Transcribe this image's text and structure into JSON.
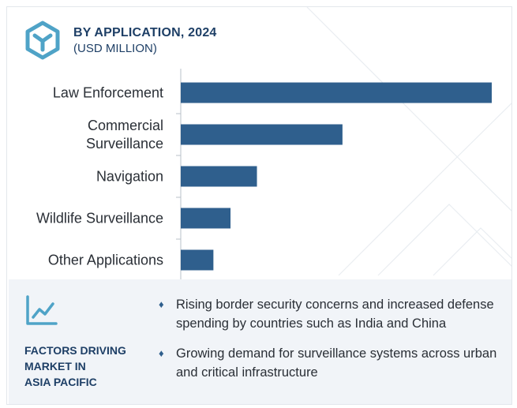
{
  "header": {
    "title": "BY APPLICATION, 2024",
    "subtitle": "(USD MILLION)",
    "logo_icon": "hexagon-y-logo-icon"
  },
  "chart_data": {
    "type": "bar",
    "orientation": "horizontal",
    "categories": [
      [
        "Law Enforcement"
      ],
      [
        "Commercial",
        "Surveillance"
      ],
      [
        "Navigation"
      ],
      [
        "Wildlife Surveillance"
      ],
      [
        "Other Applications"
      ]
    ],
    "values": [
      100,
      52,
      24.5,
      16,
      10.5
    ],
    "title": "BY APPLICATION, 2024",
    "subtitle": "(USD MILLION)",
    "xlim": [
      0,
      100
    ],
    "bar_color": "#2f5f8d",
    "grid": false,
    "legend": "none"
  },
  "factors": {
    "icon": "trend-chart-icon",
    "label": [
      "FACTORS DRIVING",
      "MARKET IN",
      "ASIA PACIFIC"
    ],
    "bullets": [
      "Rising border security concerns and increased defense spending by countries such as India and China",
      "Growing demand for surveillance systems across urban and critical infrastructure"
    ]
  },
  "colors": {
    "accent": "#1e3f66",
    "bar": "#2f5f8d",
    "logo": "#4fa3c7",
    "panel": "#f1f4f8"
  }
}
